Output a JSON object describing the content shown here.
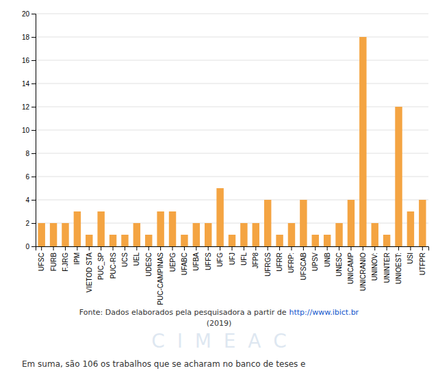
{
  "chart_data": {
    "type": "bar",
    "categories": [
      "UFSC",
      "FURB",
      "F.JRG",
      "IPM",
      "VIETOD STA",
      "PUC_SP",
      "PUC-RS",
      "UCS",
      "UEL",
      "UDESC",
      "PUC-CAMPINAS",
      "UEPG",
      "UFABC",
      "UFBA",
      "UFFS",
      "UFG",
      "UFJ",
      "UFL",
      "JFP8",
      "UFRGS",
      "UFRR",
      "UFRP:",
      "UFSCAB",
      "UPSV",
      "UNB",
      "UNESC",
      "UNICAMP",
      "UNICRANIO",
      "UNINOV:",
      "UNINTER",
      "UNIOEST:",
      "USI",
      "UTFPR"
    ],
    "values": [
      2,
      2,
      2,
      3,
      1,
      3,
      1,
      1,
      2,
      1,
      3,
      3,
      1,
      2,
      2,
      5,
      1,
      2,
      2,
      4,
      1,
      2,
      4,
      1,
      1,
      2,
      4,
      18,
      2,
      1,
      12,
      3,
      4
    ],
    "color": "#F4A442",
    "ylim": [
      0,
      20
    ],
    "yticks": [
      0,
      2,
      4,
      6,
      8,
      10,
      12,
      14,
      16,
      18,
      20
    ],
    "grid": true,
    "annotations": [
      "Fonte: Dados elaborados pela pesquisadora a partir de",
      "http://www.ibict.br",
      "(2019)",
      "C  I  M  E  A  C",
      "Em suma, são 106 os trabalhos que se acharam no banco de teses e"
    ]
  }
}
